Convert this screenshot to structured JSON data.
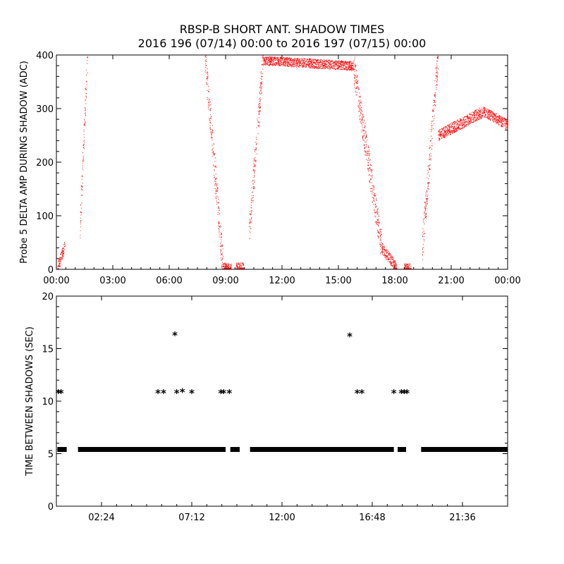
{
  "title_line1": "RBSP-B SHORT ANT. SHADOW TIMES",
  "title_line2": "2016 196 (07/14) 00:00 to 2016 197 (07/15) 00:00",
  "chart_data": [
    {
      "type": "scatter",
      "ylabel": "Probe 5 DELTA AMP DURING SHADOW (ADC)",
      "xlabel": "",
      "x_units": "hours since 2016-07-14 00:00",
      "xlim": [
        0,
        24
      ],
      "ylim": [
        0,
        400
      ],
      "x_tick_values": [
        0,
        3,
        6,
        9,
        12,
        15,
        18,
        21,
        24
      ],
      "x_tick_labels": [
        "00:00",
        "03:00",
        "06:00",
        "09:00",
        "12:00",
        "15:00",
        "18:00",
        "21:00",
        "00:00"
      ],
      "y_tick_values": [
        0,
        100,
        200,
        300,
        400
      ],
      "y_tick_labels": [
        "0",
        "100",
        "200",
        "300",
        "400"
      ],
      "color": "#ff0000",
      "grid": false,
      "bands": [
        {
          "x_start": 0.05,
          "x_end": 0.45,
          "y_start": 3,
          "y_end": 45
        },
        {
          "x_start": 1.25,
          "x_end": 1.65,
          "y_start": 80,
          "y_end": 400
        },
        {
          "x_start": 7.9,
          "x_end": 8.85,
          "y_start": 400,
          "y_end": 5
        },
        {
          "x_start": 8.85,
          "x_end": 9.3,
          "y_start": 5,
          "y_end": 3
        },
        {
          "x_start": 9.55,
          "x_end": 9.95,
          "y_start": 5,
          "y_end": 5
        },
        {
          "x_start": 10.25,
          "x_end": 11.0,
          "y_start": 70,
          "y_end": 400
        },
        {
          "x_start": 11.0,
          "x_end": 15.8,
          "y_start": 390,
          "y_end": 380
        },
        {
          "x_start": 15.8,
          "x_end": 17.3,
          "y_start": 380,
          "y_end": 40
        },
        {
          "x_start": 17.3,
          "x_end": 18.1,
          "y_start": 40,
          "y_end": 3
        },
        {
          "x_start": 18.5,
          "x_end": 18.85,
          "y_start": 3,
          "y_end": 3
        },
        {
          "x_start": 19.45,
          "x_end": 20.3,
          "y_start": 40,
          "y_end": 400
        },
        {
          "x_start": 20.3,
          "x_end": 22.7,
          "y_start": 250,
          "y_end": 295
        },
        {
          "x_start": 22.7,
          "x_end": 24.0,
          "y_start": 295,
          "y_end": 270
        }
      ]
    },
    {
      "type": "scatter",
      "ylabel": "TIME BETWEEN SHADOWS (SEC)",
      "xlabel": "",
      "x_units": "hours since 2016-07-14 00:00",
      "xlim": [
        0,
        24
      ],
      "ylim": [
        0,
        20
      ],
      "x_tick_values": [
        2.4,
        7.2,
        12.0,
        16.8,
        21.6
      ],
      "x_tick_labels": [
        "02:24",
        "07:12",
        "12:00",
        "16:48",
        "21:36"
      ],
      "y_tick_values": [
        0,
        5,
        10,
        15,
        20
      ],
      "y_tick_labels": [
        "0",
        "5",
        "10",
        "15",
        "20"
      ],
      "marker": "asterisk",
      "color": "#000000",
      "grid": false,
      "baseline_value": 5.4,
      "baseline_segments": [
        [
          0.05,
          0.55
        ],
        [
          1.15,
          9.0
        ],
        [
          9.25,
          9.75
        ],
        [
          10.3,
          17.95
        ],
        [
          18.15,
          18.6
        ],
        [
          19.4,
          24.0
        ]
      ],
      "points": [
        {
          "x": 0.1,
          "y": 10.8
        },
        {
          "x": 0.25,
          "y": 10.8
        },
        {
          "x": 5.4,
          "y": 10.8
        },
        {
          "x": 5.7,
          "y": 10.8
        },
        {
          "x": 6.3,
          "y": 16.3
        },
        {
          "x": 6.4,
          "y": 10.8
        },
        {
          "x": 6.7,
          "y": 10.9
        },
        {
          "x": 7.2,
          "y": 10.8
        },
        {
          "x": 8.75,
          "y": 10.8
        },
        {
          "x": 8.9,
          "y": 10.8
        },
        {
          "x": 9.2,
          "y": 10.8
        },
        {
          "x": 15.6,
          "y": 16.2
        },
        {
          "x": 16.0,
          "y": 10.8
        },
        {
          "x": 16.25,
          "y": 10.8
        },
        {
          "x": 17.95,
          "y": 10.8
        },
        {
          "x": 18.35,
          "y": 10.8
        },
        {
          "x": 18.5,
          "y": 10.8
        },
        {
          "x": 18.65,
          "y": 10.8
        }
      ]
    }
  ]
}
